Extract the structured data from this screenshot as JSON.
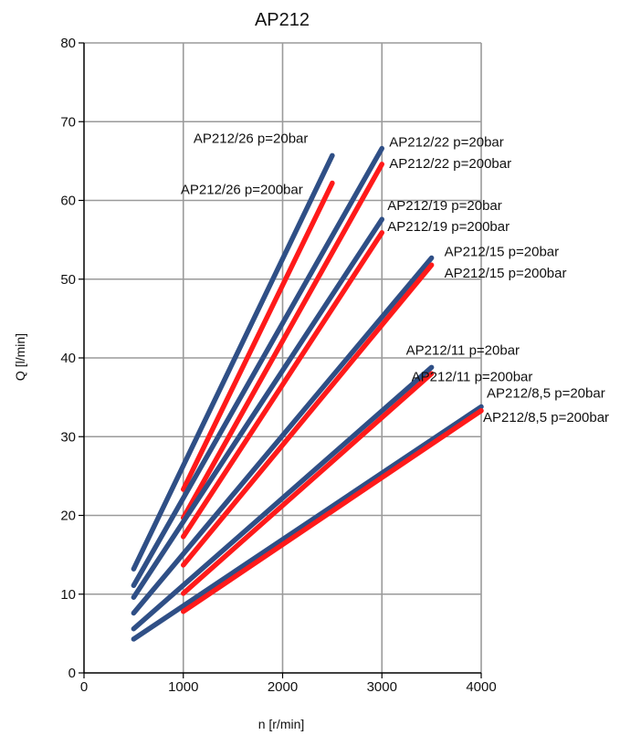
{
  "chart_data": {
    "type": "line",
    "title": "AP212",
    "xlabel": "n [r/min]",
    "ylabel": "Q [l/min]",
    "xlim": [
      0,
      4000
    ],
    "ylim": [
      0,
      80
    ],
    "x_ticks": [
      0,
      1000,
      2000,
      3000,
      4000
    ],
    "y_ticks": [
      0,
      10,
      20,
      30,
      40,
      50,
      60,
      70,
      80
    ],
    "grid": true,
    "legend": "none",
    "colors": {
      "p20": "#2f4f86",
      "p200": "#ff1a1a"
    },
    "series": [
      {
        "name": "AP212/26 p=20bar",
        "pressure": "p20",
        "x": [
          500,
          2500
        ],
        "y": [
          13.2,
          65.7
        ]
      },
      {
        "name": "AP212/26 p=200bar",
        "pressure": "p200",
        "x": [
          1000,
          2500
        ],
        "y": [
          23.3,
          62.2
        ]
      },
      {
        "name": "AP212/22 p=20bar",
        "pressure": "p20",
        "x": [
          500,
          3000
        ],
        "y": [
          11.1,
          66.6
        ]
      },
      {
        "name": "AP212/22 p=200bar",
        "pressure": "p200",
        "x": [
          1000,
          3000
        ],
        "y": [
          19.7,
          64.6
        ]
      },
      {
        "name": "AP212/19 p=20bar",
        "pressure": "p20",
        "x": [
          500,
          3000
        ],
        "y": [
          9.6,
          57.6
        ]
      },
      {
        "name": "AP212/19 p=200bar",
        "pressure": "p200",
        "x": [
          1000,
          3000
        ],
        "y": [
          17.3,
          55.9
        ]
      },
      {
        "name": "AP212/15 p=20bar",
        "pressure": "p20",
        "x": [
          500,
          3500
        ],
        "y": [
          7.6,
          52.7
        ]
      },
      {
        "name": "AP212/15 p=200bar",
        "pressure": "p200",
        "x": [
          1000,
          3500
        ],
        "y": [
          13.7,
          51.8
        ]
      },
      {
        "name": "AP212/11 p=20bar",
        "pressure": "p20",
        "x": [
          500,
          3500
        ],
        "y": [
          5.6,
          38.8
        ]
      },
      {
        "name": "AP212/11 p=200bar",
        "pressure": "p200",
        "x": [
          1000,
          3500
        ],
        "y": [
          10.1,
          38.0
        ]
      },
      {
        "name": "AP212/8,5 p=20bar",
        "pressure": "p20",
        "x": [
          500,
          4000
        ],
        "y": [
          4.3,
          33.8
        ]
      },
      {
        "name": "AP212/8,5 p=200bar",
        "pressure": "p200",
        "x": [
          1000,
          4000
        ],
        "y": [
          7.8,
          33.3
        ]
      }
    ]
  }
}
